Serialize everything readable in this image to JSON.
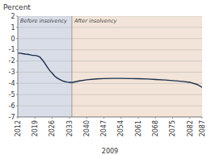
{
  "chart_data": {
    "type": "line",
    "title": "Percent",
    "x_label": "2009",
    "xlim": [
      2012,
      2087
    ],
    "xticks": [
      2012,
      2019,
      2026,
      2033,
      2040,
      2047,
      2054,
      2061,
      2068,
      2075,
      2082,
      2087
    ],
    "ylim": [
      -7,
      2
    ],
    "yticks": [
      2,
      1,
      0,
      -1,
      -2,
      -3,
      -4,
      -5,
      -6,
      -7
    ],
    "grid": true,
    "regions": [
      {
        "label": "Before insolvency",
        "from": 2012,
        "to": 2034,
        "color": "#d8dde8"
      },
      {
        "label": "After insolvency",
        "from": 2034,
        "to": 2087,
        "color": "#f2e4d8"
      }
    ],
    "series": [
      {
        "color": "#1a2e4a",
        "x": [
          2012,
          2013,
          2014,
          2015,
          2016,
          2017,
          2018,
          2019,
          2020,
          2021,
          2022,
          2023,
          2024,
          2025,
          2026,
          2027,
          2028,
          2029,
          2030,
          2031,
          2032,
          2033,
          2034
        ],
        "values": [
          -1.3,
          -1.3,
          -1.35,
          -1.38,
          -1.4,
          -1.45,
          -1.5,
          -1.5,
          -1.55,
          -1.65,
          -1.9,
          -2.2,
          -2.55,
          -2.85,
          -3.1,
          -3.35,
          -3.52,
          -3.65,
          -3.75,
          -3.83,
          -3.88,
          -3.9,
          -3.92
        ]
      },
      {
        "color": "#1a2e4a",
        "x": [
          2034,
          2037,
          2040,
          2044,
          2047,
          2051,
          2054,
          2058,
          2061,
          2065,
          2068,
          2072,
          2075,
          2079,
          2082,
          2085,
          2087
        ],
        "values": [
          -3.92,
          -3.78,
          -3.68,
          -3.6,
          -3.57,
          -3.55,
          -3.55,
          -3.57,
          -3.58,
          -3.61,
          -3.65,
          -3.7,
          -3.75,
          -3.82,
          -3.9,
          -4.1,
          -4.35
        ]
      }
    ]
  }
}
